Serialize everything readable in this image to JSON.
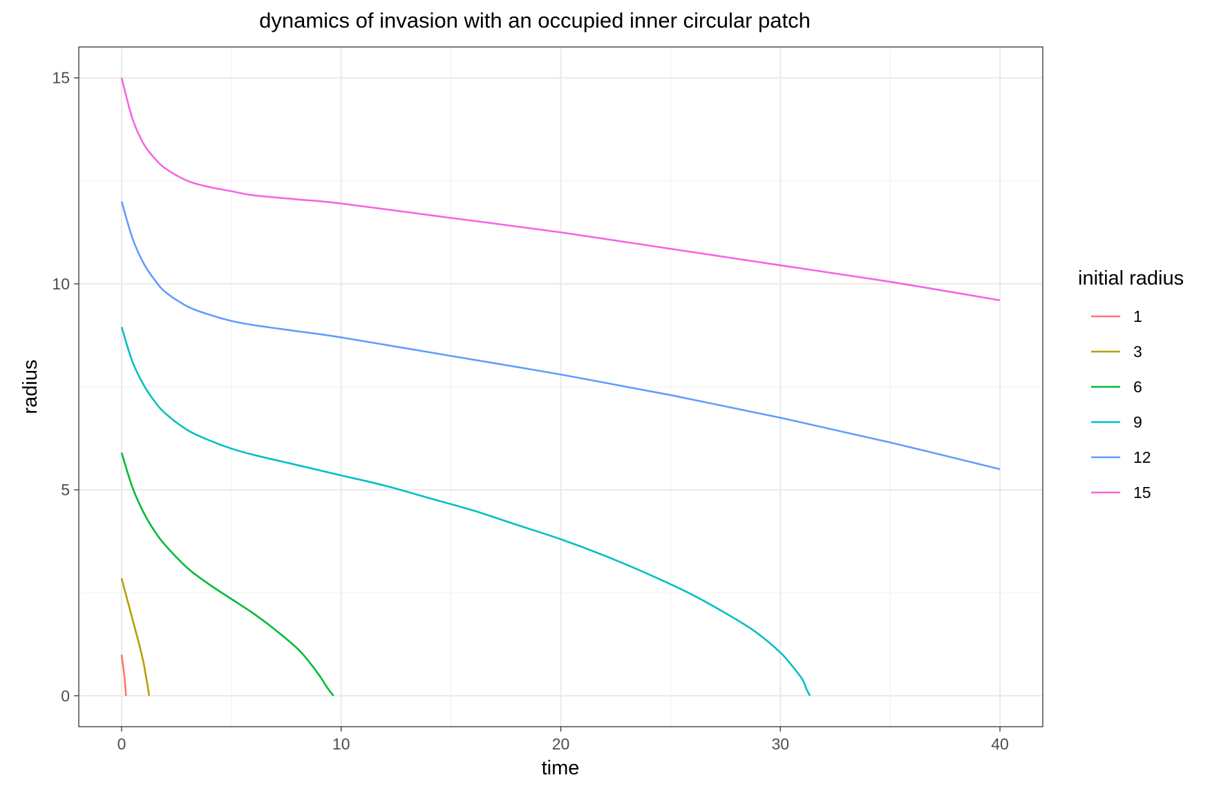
{
  "chart_data": {
    "type": "line",
    "title": "dynamics of invasion with an occupied inner circular patch",
    "xlabel": "time",
    "ylabel": "radius",
    "xlim": [
      -1.95,
      41.95
    ],
    "ylim": [
      -0.75,
      15.75
    ],
    "x_ticks": [
      0,
      10,
      20,
      30,
      40
    ],
    "y_ticks": [
      0,
      5,
      10,
      15
    ],
    "x_tick_labels": [
      "0",
      "10",
      "20",
      "30",
      "40"
    ],
    "y_tick_labels": [
      "0",
      "5",
      "10",
      "15"
    ],
    "grid": true,
    "legend": {
      "title": "initial radius",
      "position": "right"
    },
    "series": [
      {
        "name": "1",
        "color": "#F8766D",
        "x": [
          0,
          0.05,
          0.1,
          0.15,
          0.18,
          0.2
        ],
        "y": [
          1.0,
          0.8,
          0.6,
          0.35,
          0.15,
          0.0
        ]
      },
      {
        "name": "3",
        "color": "#B79F00",
        "x": [
          0,
          0.2,
          0.4,
          0.6,
          0.8,
          1.0,
          1.1,
          1.2,
          1.25
        ],
        "y": [
          2.85,
          2.45,
          2.05,
          1.65,
          1.25,
          0.8,
          0.5,
          0.2,
          0.0
        ]
      },
      {
        "name": "6",
        "color": "#00BA38",
        "x": [
          0,
          0.5,
          1,
          1.5,
          2,
          3,
          4,
          5,
          6,
          7,
          8,
          8.5,
          9,
          9.3,
          9.5,
          9.65
        ],
        "y": [
          5.9,
          5.05,
          4.45,
          4.0,
          3.65,
          3.1,
          2.7,
          2.35,
          2.0,
          1.6,
          1.15,
          0.85,
          0.5,
          0.25,
          0.1,
          0.0
        ]
      },
      {
        "name": "9",
        "color": "#00BFC4",
        "x": [
          0,
          0.5,
          1,
          1.5,
          2,
          3,
          4,
          5,
          6,
          8,
          10,
          12,
          14,
          16,
          18,
          20,
          22,
          24,
          26,
          28,
          29,
          30,
          30.5,
          31,
          31.2,
          31.35
        ],
        "y": [
          8.95,
          8.1,
          7.55,
          7.15,
          6.85,
          6.45,
          6.2,
          6.0,
          5.85,
          5.6,
          5.35,
          5.1,
          4.8,
          4.5,
          4.15,
          3.8,
          3.4,
          2.95,
          2.45,
          1.85,
          1.5,
          1.05,
          0.75,
          0.4,
          0.15,
          0.0
        ]
      },
      {
        "name": "12",
        "color": "#619CFF",
        "x": [
          0,
          0.5,
          1,
          1.5,
          2,
          3,
          4,
          5,
          6,
          8,
          10,
          15,
          20,
          25,
          30,
          35,
          40
        ],
        "y": [
          12.0,
          11.1,
          10.5,
          10.1,
          9.8,
          9.45,
          9.25,
          9.1,
          9.0,
          8.85,
          8.7,
          8.25,
          7.8,
          7.3,
          6.75,
          6.15,
          5.5
        ]
      },
      {
        "name": "15",
        "color": "#F564E3",
        "x": [
          0,
          0.5,
          1,
          1.5,
          2,
          3,
          4,
          5,
          6,
          8,
          10,
          15,
          20,
          25,
          30,
          35,
          40
        ],
        "y": [
          15.0,
          14.0,
          13.4,
          13.05,
          12.8,
          12.5,
          12.35,
          12.25,
          12.15,
          12.05,
          11.95,
          11.6,
          11.25,
          10.85,
          10.45,
          10.05,
          9.6
        ]
      }
    ]
  }
}
